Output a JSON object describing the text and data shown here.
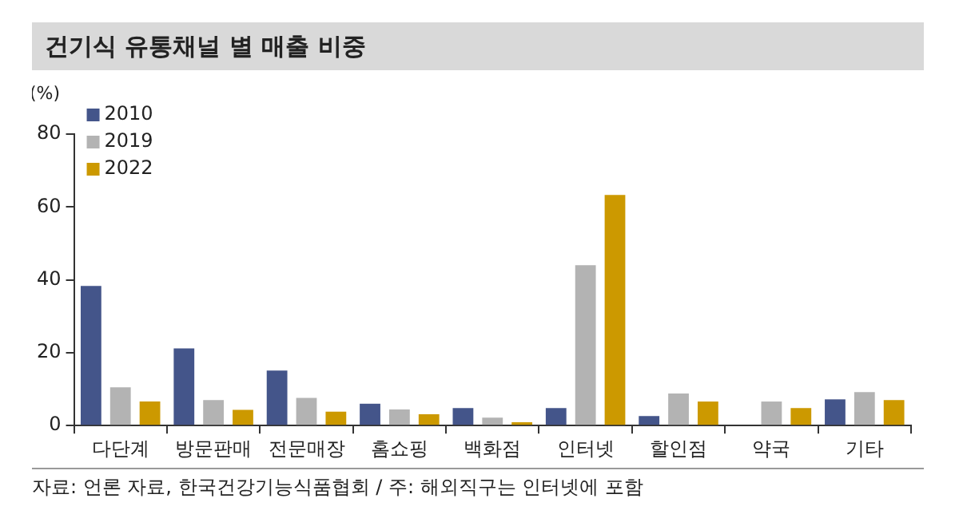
{
  "chart_data": {
    "type": "bar",
    "title": "건기식 유통채널 별 매출 비중",
    "ylabel": "(%)",
    "categories": [
      "다단계",
      "방문판매",
      "전문매장",
      "홈쇼핑",
      "백화점",
      "인터넷",
      "할인점",
      "약국",
      "기타"
    ],
    "series": [
      {
        "name": "2010",
        "color": "#44558a",
        "values": [
          38.3,
          21.2,
          15.1,
          6.0,
          4.8,
          4.8,
          2.6,
          0,
          7.2
        ]
      },
      {
        "name": "2019",
        "color": "#b3b3b3",
        "values": [
          10.5,
          7.0,
          7.6,
          4.4,
          2.2,
          44,
          8.8,
          6.6,
          9.2
        ]
      },
      {
        "name": "2022",
        "color": "#cc9900",
        "values": [
          6.6,
          4.3,
          3.8,
          3.1,
          0.9,
          63.3,
          6.6,
          4.8,
          7.0
        ]
      }
    ],
    "ylim": [
      0,
      80
    ],
    "yticks": [
      0,
      20,
      40,
      60,
      80
    ],
    "grid": false,
    "legend": "top left",
    "annotations": [
      "자료: 언론 자료, 한국건강기능식품협회 / 주: 해외직구는 인터넷에 포함"
    ]
  }
}
